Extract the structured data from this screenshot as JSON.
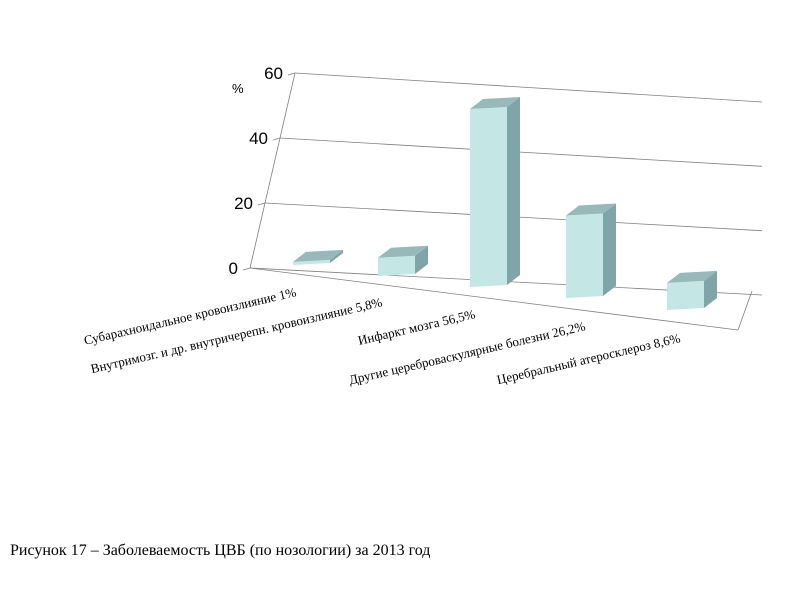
{
  "chart_data": {
    "type": "bar",
    "categories": [
      "Субарахноидальное  кровоизлияние 1%",
      "Внутримозг. и др. внутричерепн. кровоизлияние 5,8%",
      "Инфаркт мозга 56,5%",
      "Другие цереброваскулярные  болезни 26,2%",
      "Церебральный  атеросклероз  8,6%"
    ],
    "values": [
      1,
      5.8,
      56.5,
      26.2,
      8.6
    ],
    "y_ticks": [
      "0",
      "20",
      "40",
      "60"
    ],
    "y_unit": "%",
    "ylim": [
      0,
      60
    ],
    "grid": true,
    "colors": {
      "front": "#c4e7e6",
      "side": "#7ea6a8",
      "top": "#98b8b9",
      "grid": "#808080"
    }
  },
  "caption": "Рисунок 17 – Заболеваемость ЦВБ (по нозологии) за 2013 год"
}
